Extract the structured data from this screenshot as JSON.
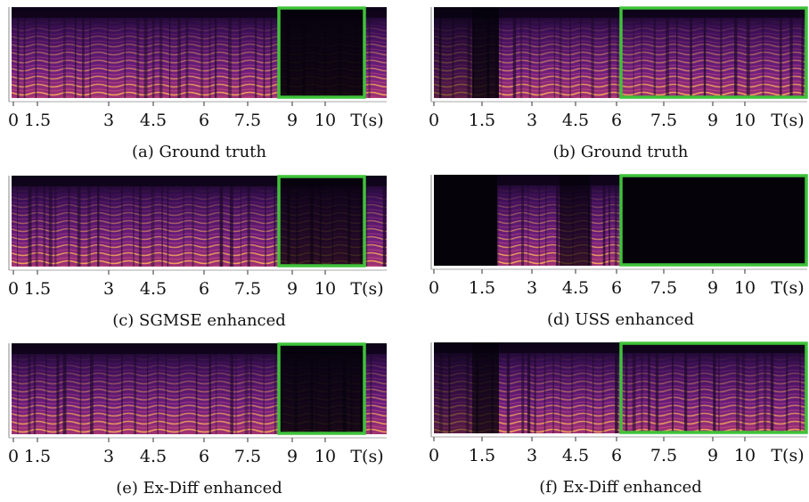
{
  "panels": [
    {
      "caption": "(a) Ground truth",
      "ticks": [
        0,
        1.5,
        3,
        4.5,
        6,
        7.5,
        9,
        10
      ],
      "unit": "T(s)"
    },
    {
      "caption": "(b) Ground truth",
      "ticks": [
        0,
        1.5,
        3,
        4.5,
        6,
        7.5,
        9,
        10
      ],
      "unit": "T(s)"
    },
    {
      "caption": "(c) SGMSE enhanced",
      "ticks": [
        0,
        1.5,
        3,
        4.5,
        6,
        7.5,
        9,
        10
      ],
      "unit": "T(s)"
    },
    {
      "caption": "(d) USS enhanced",
      "ticks": [
        0,
        1.5,
        3,
        4.5,
        6,
        7.5,
        9,
        10
      ],
      "unit": "T(s)"
    },
    {
      "caption": "(e) Ex-Diff enhanced",
      "ticks": [
        0,
        1.5,
        3,
        4.5,
        6,
        7.5,
        9,
        10
      ],
      "unit": "T(s)"
    },
    {
      "caption": "(f) Ex-Diff enhanced",
      "ticks": [
        0,
        1.5,
        3,
        4.5,
        6,
        7.5,
        9,
        10
      ],
      "unit": "T(s)"
    }
  ]
}
